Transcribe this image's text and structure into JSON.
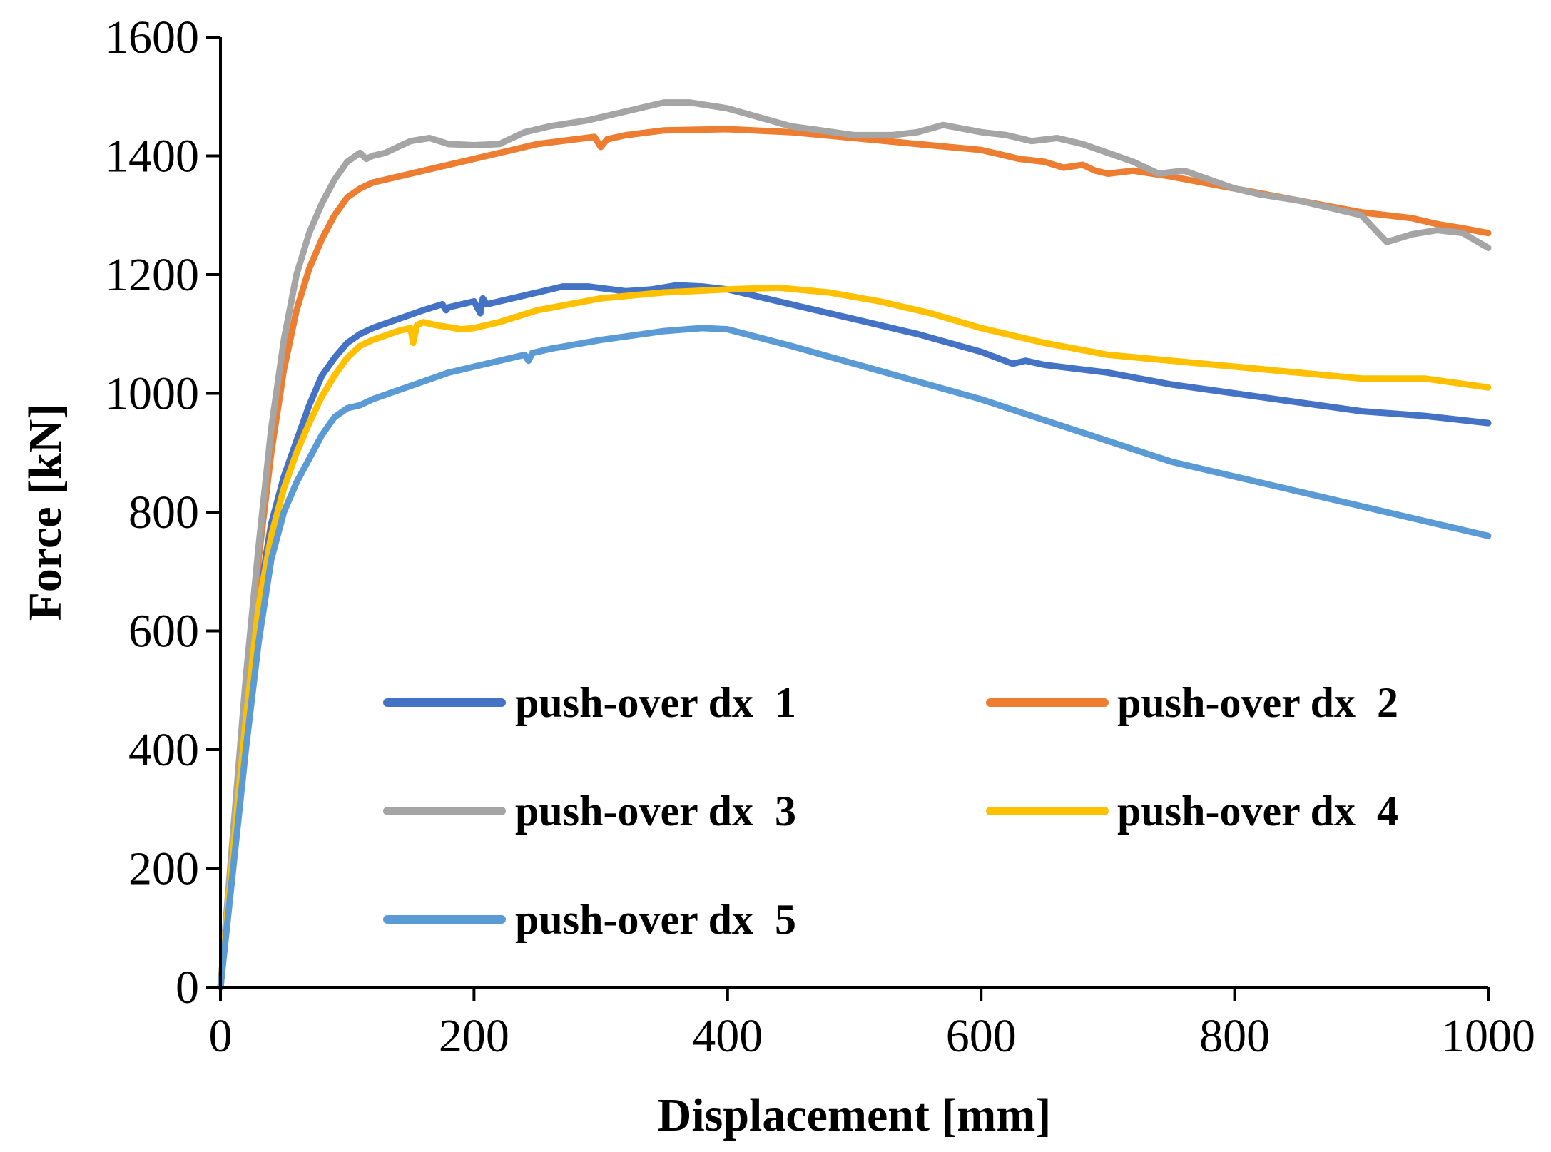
{
  "chart_data": {
    "type": "line",
    "title": "",
    "xlabel": "Displacement [mm]",
    "ylabel": "Force [kN]",
    "xlim": [
      0,
      1000
    ],
    "ylim": [
      0,
      1600
    ],
    "xticks": [
      0,
      200,
      400,
      600,
      800,
      1000
    ],
    "yticks": [
      0,
      200,
      400,
      600,
      800,
      1000,
      1200,
      1400,
      1600
    ],
    "grid": false,
    "legend_position": "center",
    "series": [
      {
        "name": "push-over dx  1",
        "color": "#4472C4",
        "x": [
          0,
          10,
          20,
          30,
          40,
          50,
          60,
          70,
          80,
          90,
          100,
          110,
          120,
          140,
          160,
          175,
          178,
          180,
          200,
          205,
          207,
          210,
          230,
          250,
          270,
          290,
          320,
          340,
          360,
          380,
          400,
          450,
          500,
          550,
          600,
          625,
          635,
          650,
          700,
          750,
          800,
          850,
          900,
          950,
          1000
        ],
        "y": [
          0,
          230,
          450,
          650,
          780,
          860,
          920,
          980,
          1030,
          1060,
          1085,
          1100,
          1110,
          1125,
          1140,
          1150,
          1140,
          1145,
          1155,
          1135,
          1160,
          1150,
          1160,
          1170,
          1180,
          1180,
          1172,
          1175,
          1182,
          1180,
          1175,
          1150,
          1125,
          1100,
          1070,
          1050,
          1055,
          1048,
          1035,
          1015,
          1000,
          985,
          970,
          962,
          950
        ]
      },
      {
        "name": "push-over dx  2",
        "color": "#ED7D31",
        "x": [
          0,
          10,
          20,
          30,
          40,
          50,
          60,
          70,
          80,
          90,
          100,
          110,
          120,
          150,
          200,
          250,
          295,
          300,
          305,
          320,
          350,
          400,
          450,
          500,
          550,
          600,
          620,
          630,
          650,
          665,
          680,
          690,
          700,
          720,
          750,
          800,
          850,
          900,
          940,
          960,
          980,
          1000
        ],
        "y": [
          0,
          250,
          500,
          720,
          900,
          1040,
          1140,
          1210,
          1260,
          1300,
          1330,
          1345,
          1355,
          1370,
          1395,
          1420,
          1432,
          1415,
          1428,
          1435,
          1443,
          1445,
          1440,
          1430,
          1420,
          1410,
          1400,
          1395,
          1390,
          1380,
          1385,
          1375,
          1370,
          1375,
          1365,
          1345,
          1325,
          1305,
          1295,
          1285,
          1278,
          1270
        ]
      },
      {
        "name": "push-over dx  3",
        "color": "#A5A5A5",
        "x": [
          0,
          10,
          20,
          30,
          40,
          50,
          60,
          70,
          80,
          90,
          100,
          110,
          115,
          120,
          130,
          150,
          165,
          180,
          200,
          220,
          240,
          260,
          290,
          320,
          350,
          370,
          400,
          450,
          500,
          530,
          550,
          570,
          580,
          600,
          620,
          640,
          660,
          680,
          700,
          720,
          740,
          760,
          780,
          800,
          820,
          850,
          880,
          900,
          920,
          940,
          960,
          980,
          1000
        ],
        "y": [
          0,
          260,
          520,
          740,
          940,
          1090,
          1200,
          1270,
          1320,
          1360,
          1390,
          1405,
          1395,
          1400,
          1405,
          1425,
          1430,
          1420,
          1418,
          1420,
          1440,
          1450,
          1460,
          1475,
          1490,
          1490,
          1480,
          1450,
          1435,
          1435,
          1440,
          1452,
          1448,
          1440,
          1435,
          1425,
          1430,
          1420,
          1405,
          1390,
          1370,
          1375,
          1360,
          1345,
          1335,
          1325,
          1310,
          1300,
          1255,
          1268,
          1275,
          1270,
          1245
        ]
      },
      {
        "name": "push-over dx  4",
        "color": "#FFC000",
        "x": [
          0,
          10,
          20,
          30,
          40,
          50,
          60,
          70,
          80,
          90,
          100,
          110,
          120,
          140,
          150,
          152,
          155,
          160,
          170,
          190,
          200,
          220,
          250,
          300,
          350,
          400,
          440,
          480,
          520,
          560,
          600,
          650,
          700,
          750,
          800,
          850,
          900,
          950,
          1000
        ],
        "y": [
          0,
          230,
          450,
          640,
          760,
          840,
          900,
          950,
          995,
          1030,
          1060,
          1080,
          1090,
          1105,
          1110,
          1085,
          1115,
          1120,
          1115,
          1108,
          1110,
          1120,
          1140,
          1160,
          1170,
          1175,
          1178,
          1170,
          1155,
          1135,
          1110,
          1085,
          1065,
          1055,
          1045,
          1035,
          1025,
          1025,
          1010
        ]
      },
      {
        "name": "push-over dx  5",
        "color": "#5B9BD5",
        "x": [
          0,
          10,
          20,
          30,
          40,
          50,
          60,
          70,
          80,
          90,
          100,
          110,
          120,
          140,
          160,
          180,
          200,
          220,
          240,
          243,
          246,
          260,
          300,
          350,
          380,
          400,
          450,
          500,
          550,
          600,
          650,
          700,
          750,
          800,
          850,
          900,
          950,
          1000
        ],
        "y": [
          0,
          200,
          400,
          580,
          720,
          800,
          850,
          890,
          930,
          960,
          975,
          980,
          990,
          1005,
          1020,
          1035,
          1045,
          1055,
          1065,
          1055,
          1068,
          1075,
          1090,
          1105,
          1110,
          1108,
          1080,
          1050,
          1020,
          990,
          955,
          920,
          885,
          860,
          835,
          810,
          785,
          760
        ]
      }
    ]
  }
}
